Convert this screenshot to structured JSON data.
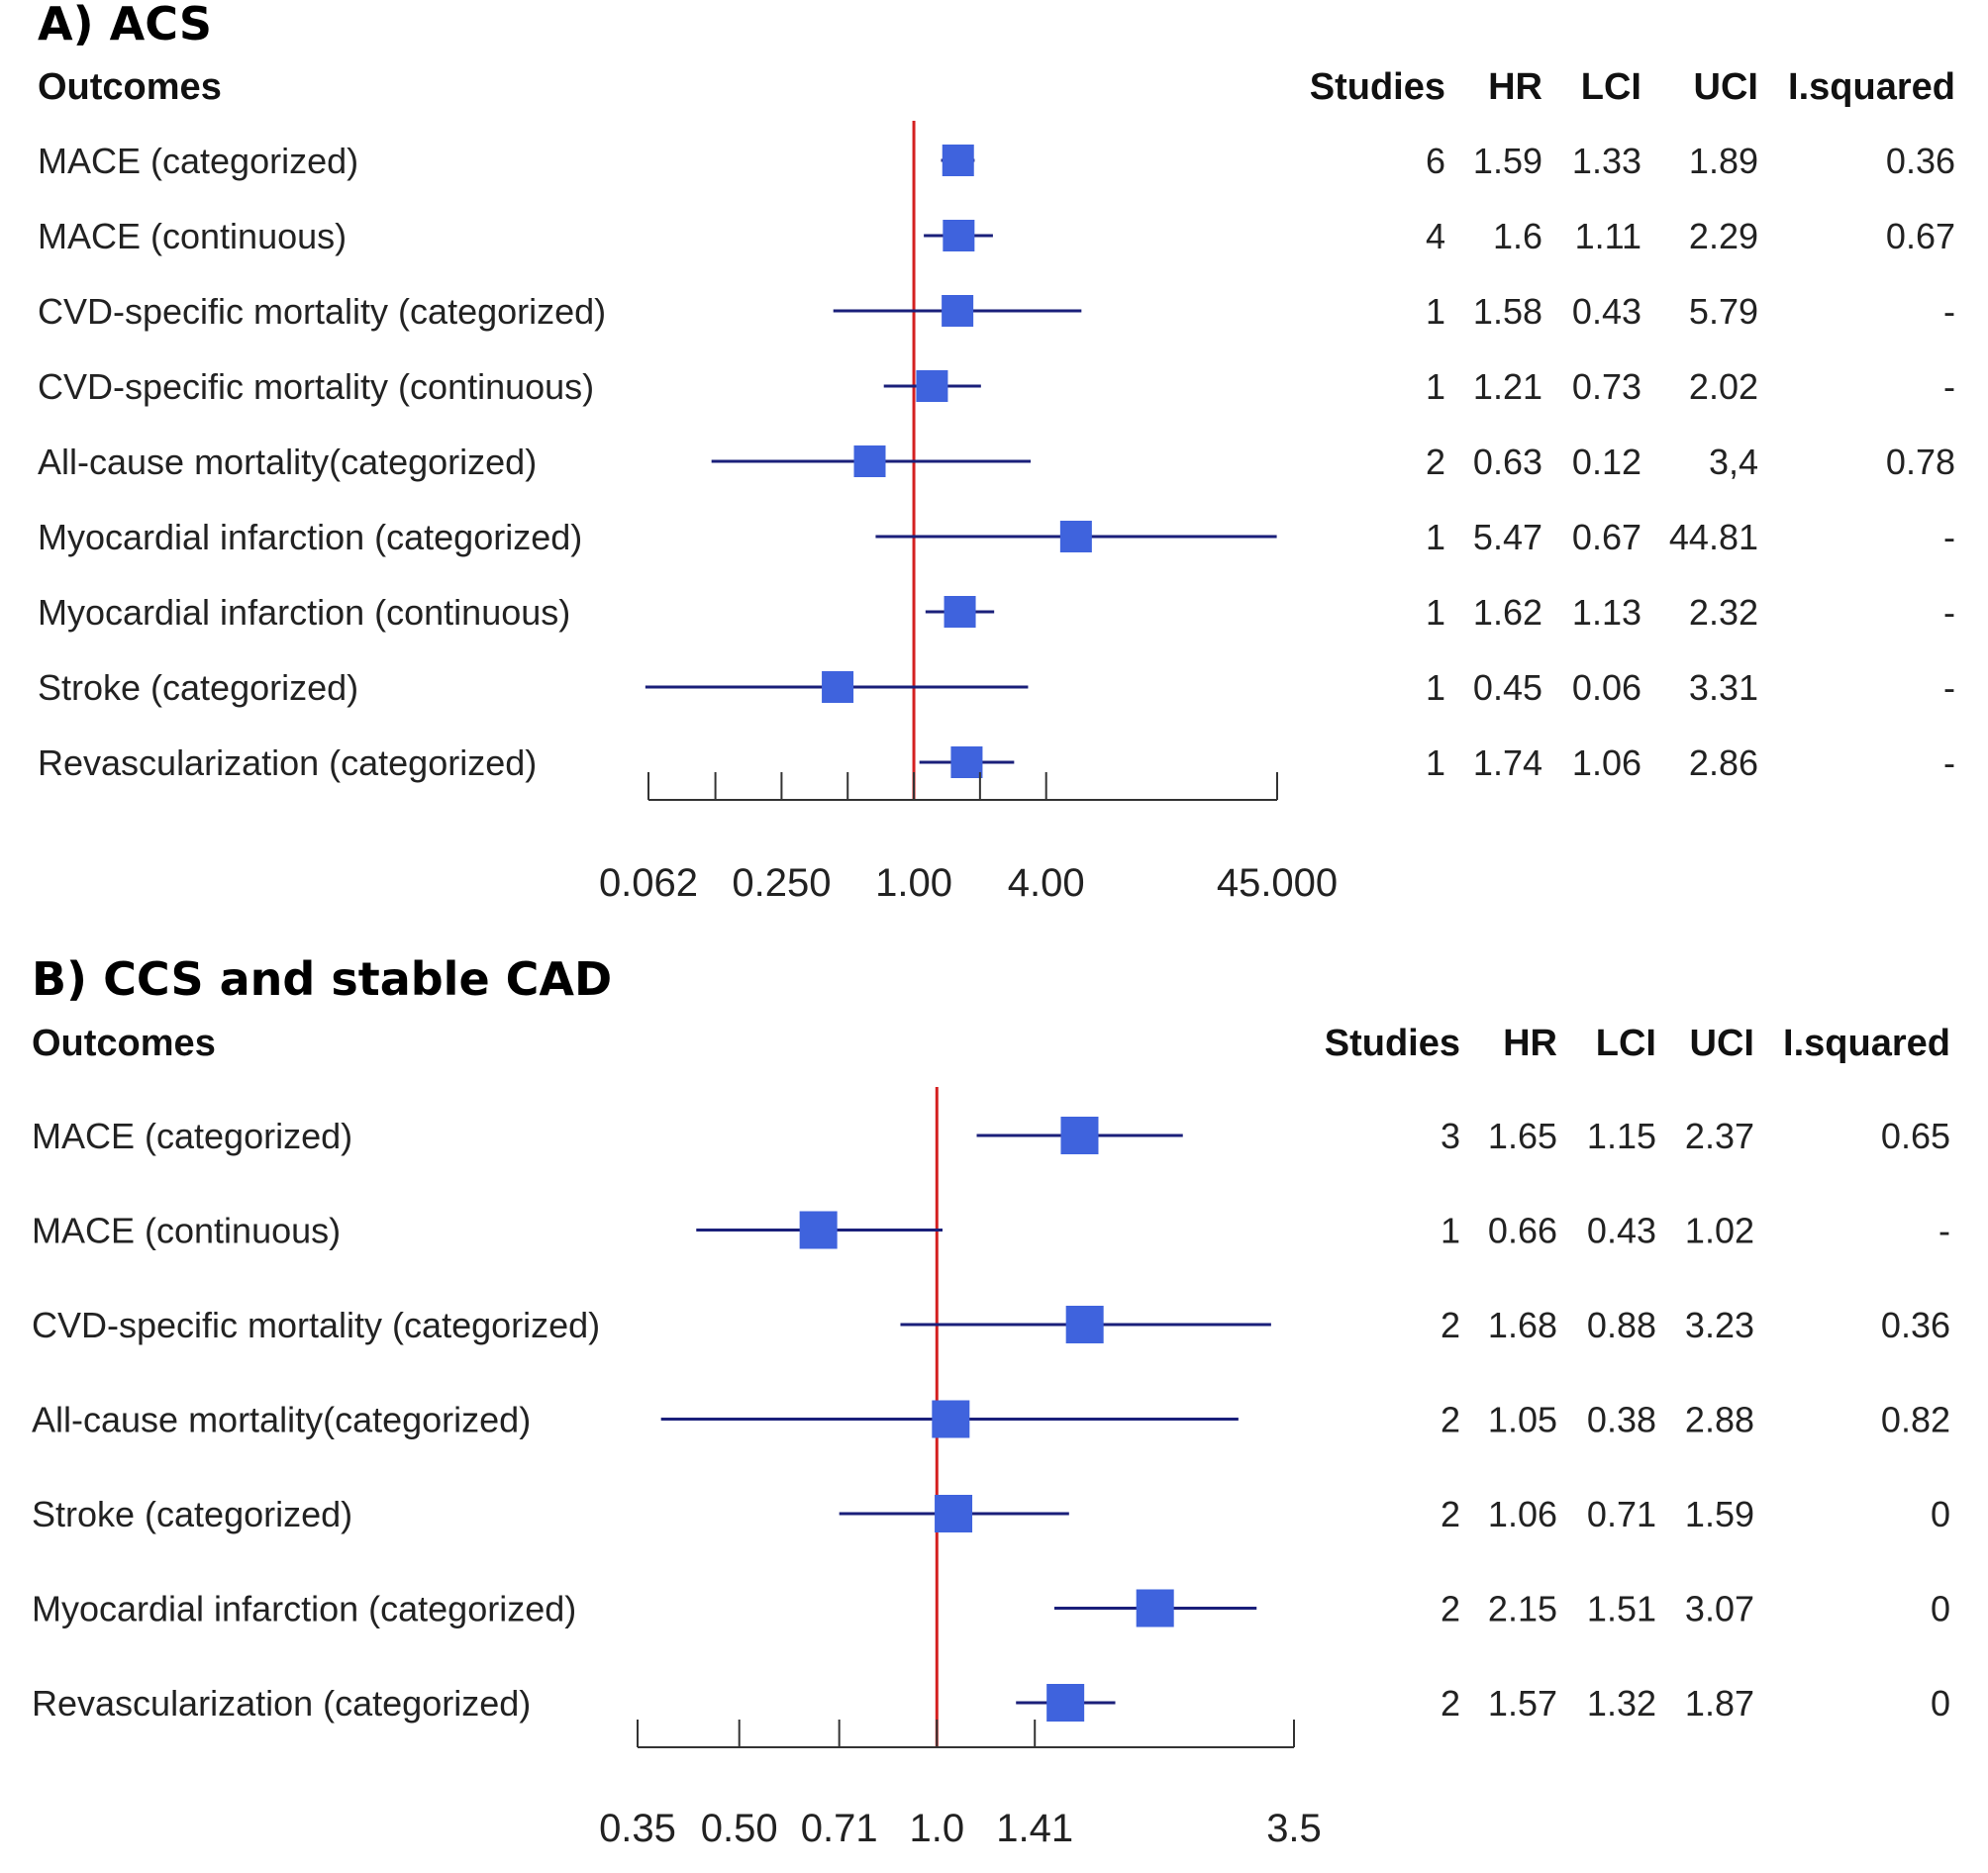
{
  "colors": {
    "marker": "#3F63DD",
    "ci_line": "#1A1F7A",
    "ref_line": "#D42020",
    "axis": "#333333"
  },
  "chart_data": [
    {
      "type": "forest",
      "title": "A) ACS",
      "label_header": "Outcomes",
      "column_headers": [
        "Studies",
        "HR",
        "LCI",
        "UCI",
        "I.squared"
      ],
      "x_scale": "log",
      "reference_value": 1.0,
      "xlim": [
        0.062,
        45.0
      ],
      "ticks": [
        0.062,
        0.125,
        0.25,
        0.5,
        1.0,
        2.0,
        4.0,
        45.0
      ],
      "tick_labels": [
        "0.062",
        "",
        "0.250",
        "",
        "1.00",
        "",
        "4.00",
        "45.000"
      ],
      "rows": [
        {
          "outcome": "MACE (categorized)",
          "studies": "6",
          "hr": 1.59,
          "lci": 1.33,
          "uci": 1.89,
          "hr_text": "1.59",
          "lci_text": "1.33",
          "uci_text": "1.89",
          "i2_text": "0.36"
        },
        {
          "outcome": "MACE (continuous)",
          "studies": "4",
          "hr": 1.6,
          "lci": 1.11,
          "uci": 2.29,
          "hr_text": "1.6",
          "lci_text": "1.11",
          "uci_text": "2.29",
          "i2_text": "0.67"
        },
        {
          "outcome": "CVD-specific mortality (categorized)",
          "studies": "1",
          "hr": 1.58,
          "lci": 0.43,
          "uci": 5.79,
          "hr_text": "1.58",
          "lci_text": "0.43",
          "uci_text": "5.79",
          "i2_text": "-"
        },
        {
          "outcome": "CVD-specific mortality (continuous)",
          "studies": "1",
          "hr": 1.21,
          "lci": 0.73,
          "uci": 2.02,
          "hr_text": "1.21",
          "lci_text": "0.73",
          "uci_text": "2.02",
          "i2_text": "-"
        },
        {
          "outcome": "All-cause mortality(categorized)",
          "studies": "2",
          "hr": 0.63,
          "lci": 0.12,
          "uci": 3.4,
          "hr_text": "0.63",
          "lci_text": "0.12",
          "uci_text": "3,4",
          "i2_text": "0.78"
        },
        {
          "outcome": "Myocardial infarction (categorized)",
          "studies": "1",
          "hr": 5.47,
          "lci": 0.67,
          "uci": 44.81,
          "hr_text": "5.47",
          "lci_text": "0.67",
          "uci_text": "44.81",
          "i2_text": "-"
        },
        {
          "outcome": "Myocardial infarction (continuous)",
          "studies": "1",
          "hr": 1.62,
          "lci": 1.13,
          "uci": 2.32,
          "hr_text": "1.62",
          "lci_text": "1.13",
          "uci_text": "2.32",
          "i2_text": "-"
        },
        {
          "outcome": "Stroke (categorized)",
          "studies": "1",
          "hr": 0.45,
          "lci": 0.06,
          "uci": 3.31,
          "hr_text": "0.45",
          "lci_text": "0.06",
          "uci_text": "3.31",
          "i2_text": "-"
        },
        {
          "outcome": "Revascularization (categorized)",
          "studies": "1",
          "hr": 1.74,
          "lci": 1.06,
          "uci": 2.86,
          "hr_text": "1.74",
          "lci_text": "1.06",
          "uci_text": "2.86",
          "i2_text": "-"
        }
      ]
    },
    {
      "type": "forest",
      "title": "B) CCS and stable CAD",
      "label_header": "Outcomes",
      "column_headers": [
        "Studies",
        "HR",
        "LCI",
        "UCI",
        "I.squared"
      ],
      "x_scale": "log",
      "reference_value": 1.0,
      "xlim": [
        0.35,
        3.5
      ],
      "ticks": [
        0.35,
        0.5,
        0.71,
        1.0,
        1.41,
        3.5
      ],
      "tick_labels": [
        "0.35",
        "0.50",
        "0.71",
        "1.0",
        "1.41",
        "3.5"
      ],
      "rows": [
        {
          "outcome": "MACE (categorized)",
          "studies": "3",
          "hr": 1.65,
          "lci": 1.15,
          "uci": 2.37,
          "hr_text": "1.65",
          "lci_text": "1.15",
          "uci_text": "2.37",
          "i2_text": "0.65"
        },
        {
          "outcome": "MACE (continuous)",
          "studies": "1",
          "hr": 0.66,
          "lci": 0.43,
          "uci": 1.02,
          "hr_text": "0.66",
          "lci_text": "0.43",
          "uci_text": "1.02",
          "i2_text": "-"
        },
        {
          "outcome": "CVD-specific mortality (categorized)",
          "studies": "2",
          "hr": 1.68,
          "lci": 0.88,
          "uci": 3.23,
          "hr_text": "1.68",
          "lci_text": "0.88",
          "uci_text": "3.23",
          "i2_text": "0.36"
        },
        {
          "outcome": "All-cause mortality(categorized)",
          "studies": "2",
          "hr": 1.05,
          "lci": 0.38,
          "uci": 2.88,
          "hr_text": "1.05",
          "lci_text": "0.38",
          "uci_text": "2.88",
          "i2_text": "0.82"
        },
        {
          "outcome": "Stroke (categorized)",
          "studies": "2",
          "hr": 1.06,
          "lci": 0.71,
          "uci": 1.59,
          "hr_text": "1.06",
          "lci_text": "0.71",
          "uci_text": "1.59",
          "i2_text": "0"
        },
        {
          "outcome": "Myocardial infarction (categorized)",
          "studies": "2",
          "hr": 2.15,
          "lci": 1.51,
          "uci": 3.07,
          "hr_text": "2.15",
          "lci_text": "1.51",
          "uci_text": "3.07",
          "i2_text": "0"
        },
        {
          "outcome": "Revascularization (categorized)",
          "studies": "2",
          "hr": 1.57,
          "lci": 1.32,
          "uci": 1.87,
          "hr_text": "1.57",
          "lci_text": "1.32",
          "uci_text": "1.87",
          "i2_text": "0"
        }
      ]
    }
  ]
}
